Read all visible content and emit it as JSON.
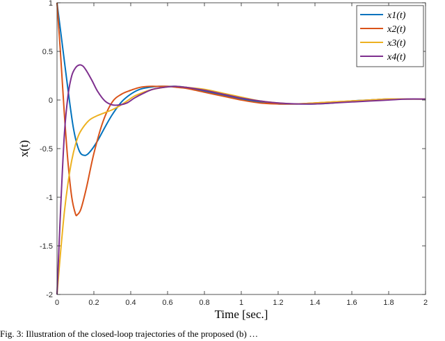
{
  "chart_data": {
    "type": "line",
    "title": "",
    "xlabel": "Time [sec.]",
    "ylabel": "x(t)",
    "xlim": [
      0,
      2
    ],
    "ylim": [
      -2,
      1
    ],
    "xticks": [
      "0",
      "0.2",
      "0.4",
      "0.6",
      "0.8",
      "1",
      "1.2",
      "1.4",
      "1.6",
      "1.8",
      "2"
    ],
    "yticks": [
      "1",
      "0.5",
      "0",
      "-0.5",
      "-1",
      "-1.5",
      "-2"
    ],
    "grid": false,
    "legend_position": "top-right",
    "series": [
      {
        "name": "x1(t)",
        "color": "#0072BD",
        "x": [
          0,
          0.03,
          0.06,
          0.09,
          0.12,
          0.15,
          0.18,
          0.22,
          0.26,
          0.3,
          0.35,
          0.4,
          0.45,
          0.5,
          0.55,
          0.6,
          0.65,
          0.7,
          0.75,
          0.8,
          0.9,
          1.0,
          1.1,
          1.2,
          1.3,
          1.4,
          1.5,
          1.6,
          1.7,
          1.8,
          1.9,
          2.0
        ],
        "y": [
          1.0,
          0.55,
          0.1,
          -0.3,
          -0.52,
          -0.57,
          -0.53,
          -0.42,
          -0.28,
          -0.15,
          -0.02,
          0.06,
          0.11,
          0.13,
          0.14,
          0.14,
          0.14,
          0.13,
          0.11,
          0.09,
          0.05,
          0.01,
          -0.02,
          -0.04,
          -0.04,
          -0.04,
          -0.03,
          -0.01,
          0.0,
          0.01,
          0.01,
          0.01
        ]
      },
      {
        "name": "x2(t)",
        "color": "#D95319",
        "x": [
          0,
          0.02,
          0.04,
          0.06,
          0.08,
          0.1,
          0.11,
          0.13,
          0.16,
          0.2,
          0.25,
          0.3,
          0.35,
          0.4,
          0.45,
          0.5,
          0.55,
          0.6,
          0.65,
          0.7,
          0.8,
          0.9,
          1.0,
          1.1,
          1.2,
          1.3,
          1.4,
          1.5,
          1.6,
          1.7,
          1.8,
          1.9,
          2.0
        ],
        "y": [
          1.0,
          0.45,
          -0.15,
          -0.65,
          -1.0,
          -1.17,
          -1.18,
          -1.12,
          -0.9,
          -0.55,
          -0.22,
          -0.02,
          0.06,
          0.1,
          0.13,
          0.14,
          0.14,
          0.14,
          0.13,
          0.12,
          0.08,
          0.04,
          0.0,
          -0.03,
          -0.04,
          -0.04,
          -0.03,
          -0.02,
          -0.01,
          0.0,
          0.01,
          0.01,
          0.01
        ]
      },
      {
        "name": "x3(t)",
        "color": "#EDB120",
        "x": [
          0,
          0.02,
          0.04,
          0.06,
          0.08,
          0.1,
          0.12,
          0.15,
          0.18,
          0.22,
          0.26,
          0.3,
          0.34,
          0.38,
          0.42,
          0.47,
          0.52,
          0.58,
          0.64,
          0.7,
          0.8,
          0.9,
          1.0,
          1.1,
          1.2,
          1.3,
          1.4,
          1.5,
          1.6,
          1.7,
          1.8,
          1.9,
          2.0
        ],
        "y": [
          -2.0,
          -1.55,
          -1.15,
          -0.85,
          -0.62,
          -0.46,
          -0.35,
          -0.26,
          -0.2,
          -0.16,
          -0.13,
          -0.1,
          -0.06,
          -0.01,
          0.04,
          0.08,
          0.11,
          0.13,
          0.14,
          0.13,
          0.11,
          0.07,
          0.03,
          -0.01,
          -0.03,
          -0.04,
          -0.03,
          -0.02,
          -0.01,
          0.0,
          0.01,
          0.01,
          0.01
        ]
      },
      {
        "name": "x4(t)",
        "color": "#7E2F8E",
        "x": [
          0,
          0.02,
          0.04,
          0.06,
          0.08,
          0.1,
          0.12,
          0.14,
          0.16,
          0.19,
          0.22,
          0.26,
          0.3,
          0.34,
          0.38,
          0.42,
          0.47,
          0.52,
          0.58,
          0.64,
          0.7,
          0.8,
          0.9,
          1.0,
          1.1,
          1.2,
          1.3,
          1.4,
          1.5,
          1.6,
          1.7,
          1.8,
          1.9,
          2.0
        ],
        "y": [
          -2.0,
          -1.1,
          -0.35,
          0.05,
          0.25,
          0.33,
          0.36,
          0.35,
          0.3,
          0.2,
          0.09,
          -0.01,
          -0.05,
          -0.05,
          -0.03,
          0.02,
          0.07,
          0.11,
          0.13,
          0.14,
          0.13,
          0.1,
          0.06,
          0.02,
          -0.01,
          -0.03,
          -0.04,
          -0.04,
          -0.03,
          -0.02,
          -0.01,
          0.0,
          0.01,
          0.01
        ]
      }
    ]
  },
  "caption": "Fig. 3:  Illustration of the closed-loop trajectories of the proposed (b) …"
}
